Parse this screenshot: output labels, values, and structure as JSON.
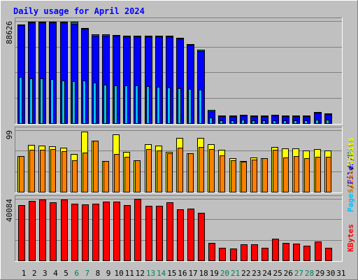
{
  "title": "Daily usage for April 2024",
  "colors": {
    "background": "#C0C0C0",
    "plot": "#C0C0C0",
    "hits": "#00805C",
    "files": "#0000FF",
    "pages": "#00C0FF",
    "visits": "#FFFF00",
    "sites": "#FF8000",
    "kbytes": "#FF0000",
    "title": "#0000FF",
    "weekday_label": "#000000",
    "weekend_label": "#00805C"
  },
  "chart_data": [
    {
      "type": "bar",
      "panel": "hits-files-pages",
      "ymax_label": "88626",
      "ymax": 88626,
      "legend": [
        "Pages",
        "/",
        "Files",
        "/",
        "Hits"
      ],
      "categories": [
        "1",
        "2",
        "3",
        "4",
        "5",
        "6",
        "7",
        "8",
        "9",
        "10",
        "11",
        "12",
        "13",
        "14",
        "15",
        "16",
        "17",
        "18",
        "19",
        "20",
        "21",
        "22",
        "23",
        "24",
        "25",
        "26",
        "27",
        "28",
        "29",
        "30",
        "31"
      ],
      "series": [
        {
          "name": "Hits",
          "values": [
            85500,
            88300,
            88000,
            88000,
            88000,
            87800,
            82300,
            76800,
            77300,
            76500,
            76000,
            76000,
            76000,
            76000,
            76000,
            74000,
            68500,
            63900,
            11300,
            6800,
            6800,
            7100,
            6800,
            6700,
            7100,
            6900,
            6800,
            6800,
            9900,
            8800,
            0
          ]
        },
        {
          "name": "Files",
          "values": [
            85000,
            87600,
            87600,
            87600,
            87400,
            86500,
            81800,
            76000,
            76100,
            75600,
            75200,
            75300,
            75100,
            75200,
            75100,
            73300,
            67700,
            62800,
            10500,
            6200,
            6200,
            6400,
            6200,
            6100,
            6500,
            6200,
            6200,
            6200,
            9100,
            8100,
            0
          ]
        },
        {
          "name": "Pages",
          "values": [
            40000,
            39000,
            39000,
            38000,
            37000,
            36500,
            37000,
            35000,
            33500,
            33000,
            32500,
            32500,
            32000,
            31500,
            31000,
            30500,
            29500,
            29000,
            5000,
            2500,
            2600,
            2800,
            2500,
            2500,
            2700,
            2500,
            2500,
            2500,
            3200,
            2900,
            0
          ]
        }
      ]
    },
    {
      "type": "bar",
      "panel": "visits-sites",
      "ymax_label": "99",
      "ymax": 99,
      "legend": [
        "Sites",
        "/",
        "Visits"
      ],
      "categories": [
        "1",
        "2",
        "3",
        "4",
        "5",
        "6",
        "7",
        "8",
        "9",
        "10",
        "11",
        "12",
        "13",
        "14",
        "15",
        "16",
        "17",
        "18",
        "19",
        "20",
        "21",
        "22",
        "23",
        "24",
        "25",
        "26",
        "27",
        "28",
        "29",
        "30",
        "31"
      ],
      "series": [
        {
          "name": "Visits",
          "values": [
            57,
            75,
            74,
            73,
            71,
            61,
            97,
            82,
            50,
            92,
            64,
            51,
            76,
            74,
            64,
            87,
            62,
            87,
            76,
            67,
            54,
            50,
            55,
            54,
            72,
            70,
            70,
            66,
            69,
            66,
            0
          ]
        },
        {
          "name": "Sites",
          "values": [
            57,
            67,
            67,
            69,
            65,
            51,
            63,
            82,
            49,
            61,
            56,
            51,
            69,
            66,
            62,
            71,
            62,
            72,
            69,
            58,
            51,
            48,
            52,
            54,
            67,
            55,
            57,
            54,
            56,
            56,
            0
          ]
        }
      ]
    },
    {
      "type": "bar",
      "panel": "kbytes",
      "ymax_label": "40084",
      "ymax": 40084,
      "legend": [
        "KBytes"
      ],
      "categories": [
        "1",
        "2",
        "3",
        "4",
        "5",
        "6",
        "7",
        "8",
        "9",
        "10",
        "11",
        "12",
        "13",
        "14",
        "15",
        "16",
        "17",
        "18",
        "19",
        "20",
        "21",
        "22",
        "23",
        "24",
        "25",
        "26",
        "27",
        "28",
        "29",
        "30",
        "31"
      ],
      "series": [
        {
          "name": "KBytes",
          "values": [
            36000,
            38800,
            39600,
            37800,
            39600,
            37100,
            36400,
            37100,
            38400,
            38400,
            36000,
            39900,
            35400,
            35600,
            37600,
            33300,
            33800,
            31200,
            11400,
            8400,
            7900,
            10600,
            10600,
            8000,
            14000,
            11200,
            10900,
            9600,
            12100,
            8200,
            0
          ]
        }
      ]
    }
  ],
  "x_labels": [
    {
      "text": "1",
      "weekend": false
    },
    {
      "text": "2",
      "weekend": false
    },
    {
      "text": "3",
      "weekend": false
    },
    {
      "text": "4",
      "weekend": false
    },
    {
      "text": "5",
      "weekend": false
    },
    {
      "text": "6",
      "weekend": true
    },
    {
      "text": "7",
      "weekend": true
    },
    {
      "text": "8",
      "weekend": false
    },
    {
      "text": "9",
      "weekend": false
    },
    {
      "text": "10",
      "weekend": false
    },
    {
      "text": "11",
      "weekend": false
    },
    {
      "text": "12",
      "weekend": false
    },
    {
      "text": "13",
      "weekend": true
    },
    {
      "text": "14",
      "weekend": true
    },
    {
      "text": "15",
      "weekend": false
    },
    {
      "text": "16",
      "weekend": false
    },
    {
      "text": "17",
      "weekend": false
    },
    {
      "text": "18",
      "weekend": false
    },
    {
      "text": "19",
      "weekend": false
    },
    {
      "text": "20",
      "weekend": true
    },
    {
      "text": "21",
      "weekend": true
    },
    {
      "text": "22",
      "weekend": false
    },
    {
      "text": "23",
      "weekend": false
    },
    {
      "text": "24",
      "weekend": false
    },
    {
      "text": "25",
      "weekend": false
    },
    {
      "text": "26",
      "weekend": false
    },
    {
      "text": "27",
      "weekend": true
    },
    {
      "text": "28",
      "weekend": true
    },
    {
      "text": "29",
      "weekend": false
    },
    {
      "text": "30",
      "weekend": false
    },
    {
      "text": "31",
      "weekend": false
    }
  ]
}
